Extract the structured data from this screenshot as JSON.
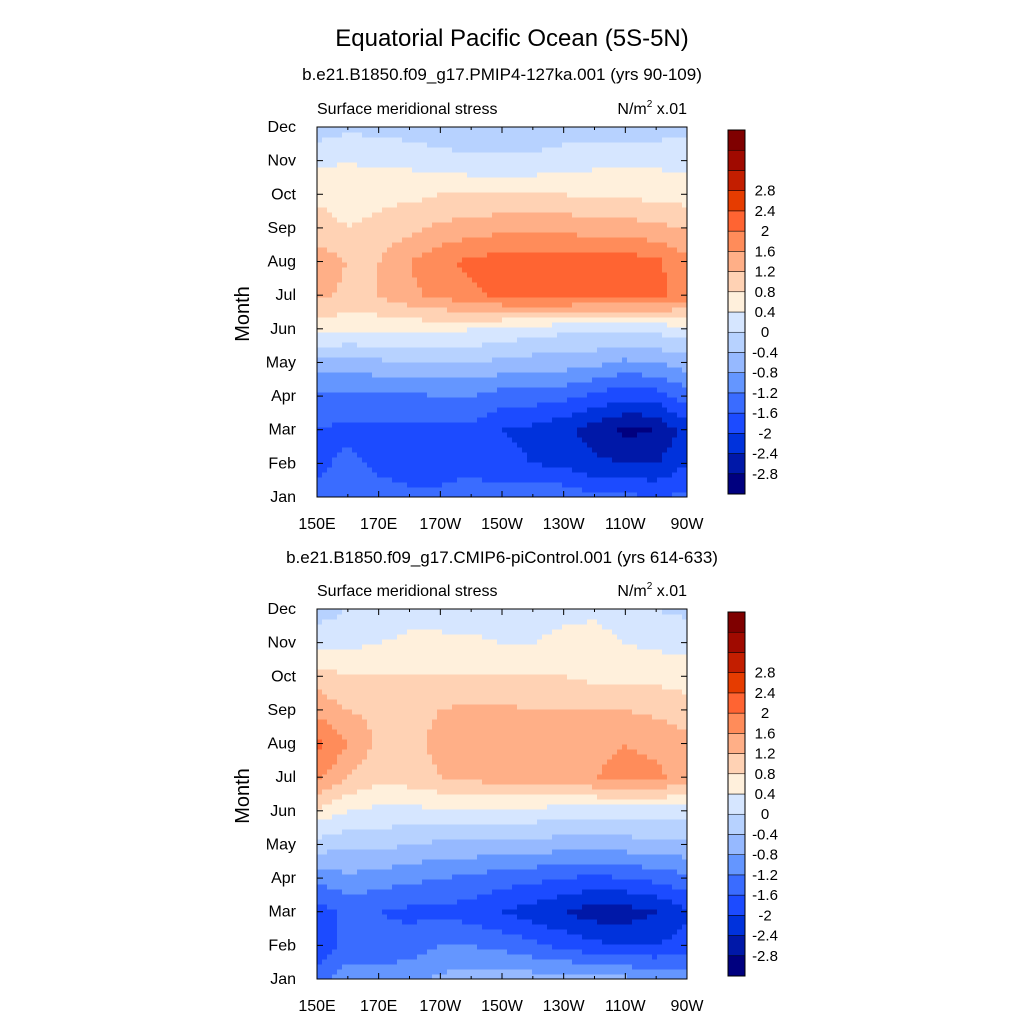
{
  "figure": {
    "title": "Equatorial Pacific Ocean (5S-5N)"
  },
  "colorbar": {
    "colors": [
      "#00007F",
      "#0018A8",
      "#0032DC",
      "#1C4BFF",
      "#3A6CFF",
      "#6496FF",
      "#96B9FF",
      "#B7D2FF",
      "#D6E6FF",
      "#FFF0DC",
      "#FFD2B4",
      "#FFAF87",
      "#FF8C5A",
      "#FF6432",
      "#E63C00",
      "#C31E00",
      "#A00A00",
      "#7F0000"
    ],
    "labels": [
      "-2.8",
      "-2.4",
      "-2",
      "-1.6",
      "-1.2",
      "-0.8",
      "-0.4",
      "0",
      "0.4",
      "0.8",
      "1.2",
      "1.6",
      "2",
      "2.4",
      "2.8"
    ]
  },
  "chart_data": [
    {
      "type": "heatmap",
      "title": "b.e21.B1850.f09_g17.PMIP4-127ka.001 (yrs 90-109)",
      "left_label": "Surface meridional stress",
      "right_label_base": "N/m",
      "right_label_exp": "2",
      "right_label_scale": "x.01",
      "ylabel": "Month",
      "xlabel": "",
      "x_ticks": [
        "150E",
        "170E",
        "170W",
        "150W",
        "130W",
        "110W",
        "90W"
      ],
      "x_tick_lons": [
        150,
        170,
        190,
        210,
        230,
        250,
        270
      ],
      "y_ticks": [
        "Jan",
        "Feb",
        "Mar",
        "Apr",
        "May",
        "Jun",
        "Jul",
        "Aug",
        "Sep",
        "Oct",
        "Nov",
        "Dec"
      ],
      "x_lon": [
        150,
        160,
        170,
        180,
        190,
        200,
        210,
        220,
        230,
        240,
        250,
        260,
        270
      ],
      "values": [
        [
          -1.5,
          -1.2,
          -1.4,
          -1.5,
          -1.5,
          -1.4,
          -1.4,
          -1.3,
          -1.3,
          -1.5,
          -1.5,
          -1.6,
          -1.5
        ],
        [
          -1.7,
          -1.5,
          -1.7,
          -1.8,
          -1.8,
          -1.7,
          -1.9,
          -2.0,
          -2.1,
          -2.3,
          -2.4,
          -2.4,
          -2.0
        ],
        [
          -1.6,
          -1.7,
          -1.7,
          -1.7,
          -1.7,
          -1.7,
          -2.0,
          -2.1,
          -2.3,
          -2.6,
          -2.9,
          -2.8,
          -2.2
        ],
        [
          -1.3,
          -1.3,
          -1.3,
          -1.3,
          -1.2,
          -1.2,
          -1.4,
          -1.4,
          -1.5,
          -1.7,
          -1.9,
          -1.8,
          -1.4
        ],
        [
          -0.6,
          -0.6,
          -0.5,
          -0.4,
          -0.4,
          -0.4,
          -0.5,
          -0.6,
          -0.6,
          -0.7,
          -0.9,
          -0.8,
          -0.6
        ],
        [
          0.6,
          0.5,
          0.5,
          0.5,
          0.5,
          0.4,
          0.3,
          0.2,
          0.1,
          0.1,
          0.1,
          0.1,
          0.3
        ],
        [
          1.3,
          1.1,
          1.2,
          1.5,
          1.7,
          1.9,
          2.1,
          2.2,
          2.2,
          2.1,
          2.1,
          2.1,
          1.8
        ],
        [
          1.4,
          1.2,
          1.2,
          1.6,
          1.9,
          2.1,
          2.2,
          2.2,
          2.2,
          2.2,
          2.2,
          2.1,
          1.7
        ],
        [
          1.0,
          0.8,
          0.9,
          1.1,
          1.3,
          1.4,
          1.5,
          1.5,
          1.5,
          1.4,
          1.4,
          1.3,
          1.2
        ],
        [
          0.7,
          0.6,
          0.7,
          0.7,
          0.8,
          0.8,
          0.8,
          0.8,
          0.8,
          0.7,
          0.7,
          0.7,
          0.6
        ],
        [
          0.3,
          0.4,
          0.3,
          0.3,
          0.2,
          0.1,
          0.1,
          0.1,
          0.2,
          0.3,
          0.3,
          0.3,
          0.3
        ],
        [
          -0.2,
          -0.1,
          -0.1,
          -0.2,
          -0.3,
          -0.4,
          -0.4,
          -0.3,
          -0.2,
          -0.2,
          -0.2,
          -0.2,
          -0.1
        ]
      ]
    },
    {
      "type": "heatmap",
      "title": "b.e21.B1850.f09_g17.CMIP6-piControl.001 (yrs 614-633)",
      "left_label": "Surface meridional stress",
      "right_label_base": "N/m",
      "right_label_exp": "2",
      "right_label_scale": "x.01",
      "ylabel": "Month",
      "xlabel": "",
      "x_ticks": [
        "150E",
        "170E",
        "170W",
        "150W",
        "130W",
        "110W",
        "90W"
      ],
      "x_tick_lons": [
        150,
        170,
        190,
        210,
        230,
        250,
        270
      ],
      "y_ticks": [
        "Jan",
        "Feb",
        "Mar",
        "Apr",
        "May",
        "Jun",
        "Jul",
        "Aug",
        "Sep",
        "Oct",
        "Nov",
        "Dec"
      ],
      "x_lon": [
        150,
        160,
        170,
        180,
        190,
        200,
        210,
        220,
        230,
        240,
        250,
        260,
        270
      ],
      "values": [
        [
          -1.3,
          -1.0,
          -1.0,
          -0.9,
          -0.7,
          -0.6,
          -0.6,
          -0.6,
          -0.6,
          -0.6,
          -0.7,
          -0.8,
          -0.9
        ],
        [
          -2.0,
          -1.4,
          -1.5,
          -1.4,
          -1.2,
          -1.2,
          -1.3,
          -1.5,
          -1.7,
          -1.9,
          -2.0,
          -2.0,
          -1.8
        ],
        [
          -1.8,
          -1.5,
          -1.6,
          -1.7,
          -1.7,
          -1.8,
          -2.0,
          -2.2,
          -2.4,
          -2.6,
          -2.6,
          -2.4,
          -2.1
        ],
        [
          -1.1,
          -0.9,
          -1.0,
          -1.1,
          -1.2,
          -1.3,
          -1.4,
          -1.5,
          -1.6,
          -1.7,
          -1.6,
          -1.5,
          -1.3
        ],
        [
          -0.2,
          -0.3,
          -0.3,
          -0.4,
          -0.5,
          -0.5,
          -0.6,
          -0.6,
          -0.6,
          -0.6,
          -0.6,
          -0.5,
          -0.5
        ],
        [
          0.7,
          0.4,
          0.3,
          0.3,
          0.3,
          0.3,
          0.3,
          0.3,
          0.2,
          0.2,
          0.2,
          0.2,
          0.2
        ],
        [
          1.7,
          1.2,
          0.9,
          1.0,
          1.2,
          1.3,
          1.4,
          1.4,
          1.4,
          1.6,
          1.7,
          1.7,
          1.4
        ],
        [
          2.1,
          1.6,
          1.1,
          1.1,
          1.3,
          1.4,
          1.5,
          1.4,
          1.4,
          1.5,
          1.6,
          1.5,
          1.3
        ],
        [
          1.5,
          1.2,
          1.1,
          1.1,
          1.2,
          1.3,
          1.3,
          1.2,
          1.2,
          1.2,
          1.2,
          1.1,
          1.0
        ],
        [
          1.0,
          0.8,
          0.8,
          0.8,
          0.8,
          0.8,
          0.8,
          0.8,
          0.8,
          0.7,
          0.7,
          0.7,
          0.6
        ],
        [
          0.3,
          0.3,
          0.4,
          0.5,
          0.5,
          0.5,
          0.4,
          0.4,
          0.6,
          0.6,
          0.4,
          0.3,
          0.3
        ],
        [
          -0.2,
          0.0,
          0.1,
          0.2,
          0.2,
          0.1,
          0.1,
          0.0,
          0.2,
          0.3,
          0.1,
          0.0,
          -0.1
        ]
      ]
    }
  ]
}
